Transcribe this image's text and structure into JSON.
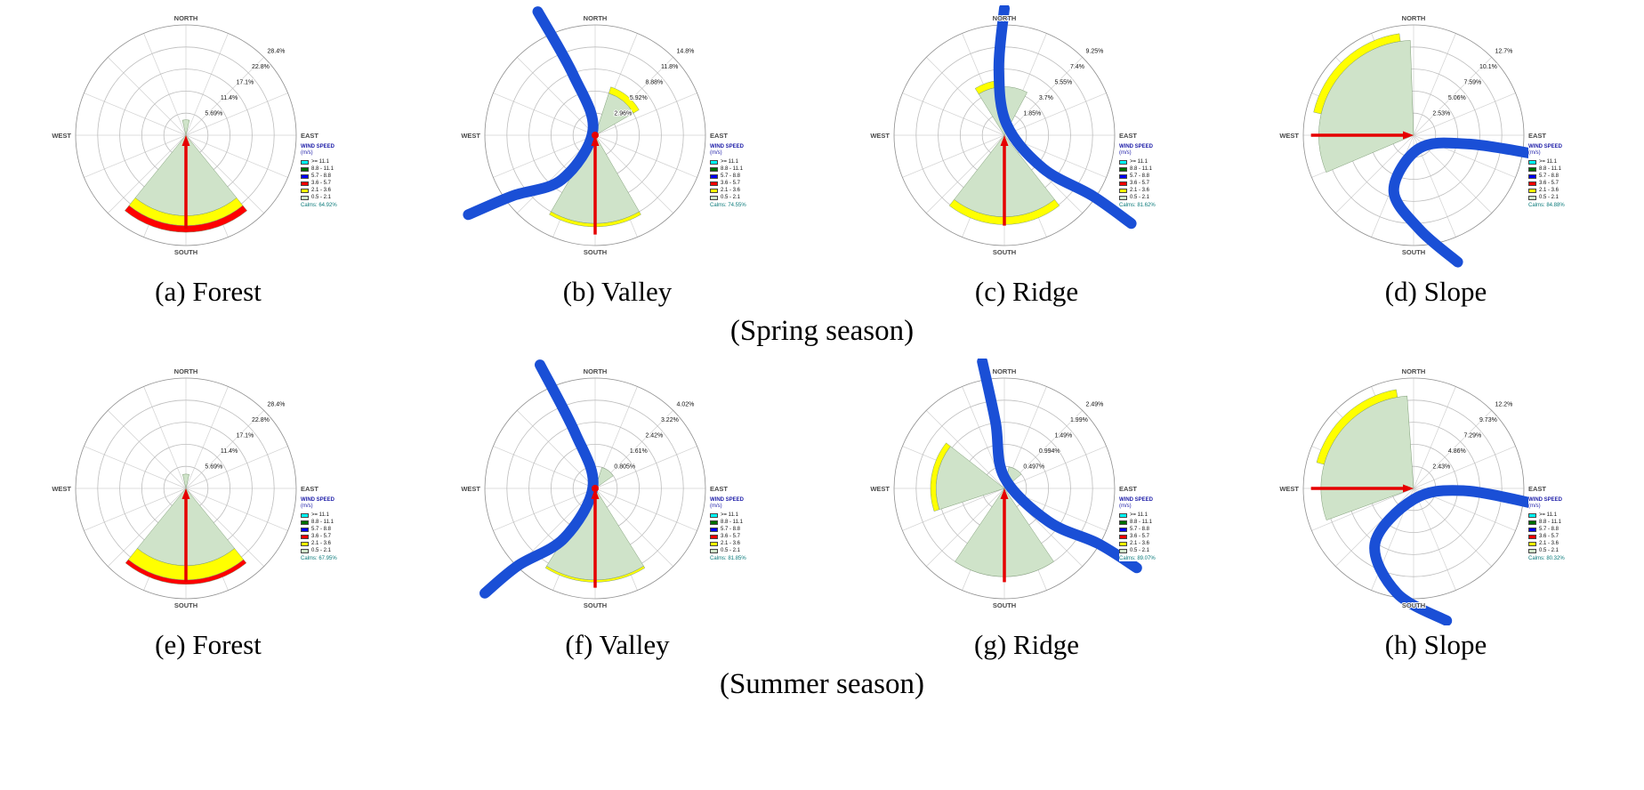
{
  "figure": {
    "background": "#ffffff",
    "seasons": [
      {
        "label": "(Spring season)"
      },
      {
        "label": "(Summer season)"
      }
    ]
  },
  "rose_common": {
    "direction_labels": {
      "north": "NORTH",
      "east": "EAST",
      "south": "SOUTH",
      "west": "WEST"
    },
    "colors": {
      "river": "#1a4fd6",
      "arrow": "#e60000",
      "petal_green": "#cfe3c9",
      "petal_yellow": "#ffff00",
      "petal_red": "#ff0000",
      "grid": "#bdbdbd"
    }
  },
  "legend_common": {
    "title": "WIND SPEED",
    "units": "(m/s)",
    "bins": [
      {
        "color": "#00ffff",
        "label": ">= 11.1"
      },
      {
        "color": "#006f00",
        "label": "8.8 - 11.1"
      },
      {
        "color": "#0000ff",
        "label": "5.7 - 8.8"
      },
      {
        "color": "#ff0000",
        "label": "3.6 - 5.7"
      },
      {
        "color": "#ffff00",
        "label": "2.1 - 3.6"
      },
      {
        "color": "#cfe3c9",
        "label": "0.5 - 2.1"
      }
    ]
  },
  "chart_data": [
    {
      "type": "wind-rose",
      "panel_id": "a",
      "caption": "(a) Forest",
      "season": "Spring",
      "row": 0,
      "ring_labels": [
        "28.4%",
        "22.8%",
        "17.1%",
        "11.4%",
        "5.69%"
      ],
      "ring_values_percent": [
        28.4,
        22.8,
        17.1,
        11.4,
        5.69
      ],
      "calms": "Calms: 64.92%",
      "dominant_sector": "S",
      "arrow_points_to": "north",
      "petals": [
        {
          "start_deg": 141,
          "end_deg": 219,
          "bands": [
            {
              "color": "#cfe3c9",
              "r0": 0,
              "r1": 0.73
            },
            {
              "color": "#ffff00",
              "r0": 0.73,
              "r1": 0.82
            },
            {
              "color": "#ff0000",
              "r0": 0.82,
              "r1": 0.88
            }
          ]
        },
        {
          "start_deg": -13,
          "end_deg": 13,
          "bands": [
            {
              "color": "#cfe3c9",
              "r0": 0,
              "r1": 0.14
            }
          ]
        }
      ],
      "arrow": {
        "x1": 0,
        "y1": 0.85,
        "x2": 0,
        "y2": 0
      },
      "center_dot": false,
      "river": null
    },
    {
      "type": "wind-rose",
      "panel_id": "b",
      "caption": "(b) Valley",
      "season": "Spring",
      "row": 0,
      "ring_labels": [
        "14.8%",
        "11.8%",
        "8.88%",
        "5.92%",
        "2.96%"
      ],
      "ring_values_percent": [
        14.8,
        11.8,
        8.88,
        5.92,
        2.96
      ],
      "calms": "Calms: 74.55%",
      "dominant_sector": "S",
      "arrow_points_to": "north",
      "petals": [
        {
          "start_deg": 150,
          "end_deg": 210,
          "bands": [
            {
              "color": "#cfe3c9",
              "r0": 0,
              "r1": 0.8
            },
            {
              "color": "#ffff00",
              "r0": 0.8,
              "r1": 0.83
            }
          ]
        },
        {
          "start_deg": 18,
          "end_deg": 60,
          "bands": [
            {
              "color": "#cfe3c9",
              "r0": 0,
              "r1": 0.4
            },
            {
              "color": "#ffff00",
              "r0": 0.4,
              "r1": 0.46
            }
          ]
        }
      ],
      "arrow": {
        "x1": 0,
        "y1": 0.9,
        "x2": 0,
        "y2": 0
      },
      "center_dot": true,
      "river": [
        [
          -0.52,
          -1.12
        ],
        [
          -0.2,
          -0.55
        ],
        [
          -0.02,
          -0.05
        ],
        [
          -0.3,
          0.4
        ],
        [
          -0.75,
          0.55
        ],
        [
          -1.15,
          0.72
        ]
      ]
    },
    {
      "type": "wind-rose",
      "panel_id": "c",
      "caption": "(c) Ridge",
      "season": "Spring",
      "row": 0,
      "ring_labels": [
        "9.25%",
        "7.4%",
        "5.55%",
        "3.7%",
        "1.85%"
      ],
      "ring_values_percent": [
        9.25,
        7.4,
        5.55,
        3.7,
        1.85
      ],
      "calms": "Calms: 81.62%",
      "dominant_sector": "S",
      "arrow_points_to": "north",
      "petals": [
        {
          "start_deg": 142,
          "end_deg": 218,
          "bands": [
            {
              "color": "#cfe3c9",
              "r0": 0,
              "r1": 0.74
            },
            {
              "color": "#ffff00",
              "r0": 0.74,
              "r1": 0.81
            }
          ]
        },
        {
          "start_deg": -32,
          "end_deg": 28,
          "bands": [
            {
              "color": "#cfe3c9",
              "r0": 0,
              "r1": 0.44
            }
          ]
        },
        {
          "start_deg": -32,
          "end_deg": -5,
          "bands": [
            {
              "color": "#ffff00",
              "r0": 0.44,
              "r1": 0.5
            }
          ]
        }
      ],
      "arrow": {
        "x1": 0,
        "y1": 0.82,
        "x2": 0,
        "y2": 0
      },
      "center_dot": false,
      "river": [
        [
          0.0,
          -1.15
        ],
        [
          -0.05,
          -0.6
        ],
        [
          0.02,
          -0.1
        ],
        [
          0.35,
          0.3
        ],
        [
          0.8,
          0.55
        ],
        [
          1.15,
          0.8
        ]
      ]
    },
    {
      "type": "wind-rose",
      "panel_id": "d",
      "caption": "(d) Slope",
      "season": "Spring",
      "row": 0,
      "ring_labels": [
        "12.7%",
        "10.1%",
        "7.59%",
        "5.06%",
        "2.53%"
      ],
      "ring_values_percent": [
        12.7,
        10.1,
        7.59,
        5.06,
        2.53
      ],
      "calms": "Calms: 84.88%",
      "dominant_sector": "W-NW",
      "arrow_points_to": "east",
      "petals": [
        {
          "start_deg": 247,
          "end_deg": 358,
          "bands": [
            {
              "color": "#cfe3c9",
              "r0": 0,
              "r1": 0.86
            }
          ]
        },
        {
          "start_deg": 283,
          "end_deg": 352,
          "bands": [
            {
              "color": "#ffff00",
              "r0": 0.86,
              "r1": 0.93
            }
          ]
        }
      ],
      "arrow": {
        "x1": -0.93,
        "y1": 0,
        "x2": 0,
        "y2": 0
      },
      "center_dot": false,
      "river": [
        [
          1.15,
          0.18
        ],
        [
          0.5,
          0.08
        ],
        [
          0.05,
          0.12
        ],
        [
          -0.18,
          0.5
        ],
        [
          0.05,
          0.85
        ],
        [
          0.4,
          1.15
        ]
      ]
    },
    {
      "type": "wind-rose",
      "panel_id": "e",
      "caption": "(e) Forest",
      "season": "Summer",
      "row": 1,
      "ring_labels": [
        "28.4%",
        "22.8%",
        "17.1%",
        "11.4%",
        "5.69%"
      ],
      "ring_values_percent": [
        28.4,
        22.8,
        17.1,
        11.4,
        5.69
      ],
      "calms": "Calms: 67.95%",
      "dominant_sector": "S",
      "arrow_points_to": "north",
      "petals": [
        {
          "start_deg": 141,
          "end_deg": 219,
          "bands": [
            {
              "color": "#cfe3c9",
              "r0": 0,
              "r1": 0.7
            },
            {
              "color": "#ffff00",
              "r0": 0.7,
              "r1": 0.83
            },
            {
              "color": "#ff0000",
              "r0": 0.83,
              "r1": 0.87
            }
          ]
        },
        {
          "start_deg": -13,
          "end_deg": 13,
          "bands": [
            {
              "color": "#cfe3c9",
              "r0": 0,
              "r1": 0.13
            }
          ]
        }
      ],
      "arrow": {
        "x1": 0,
        "y1": 0.85,
        "x2": 0,
        "y2": 0
      },
      "center_dot": false,
      "river": null
    },
    {
      "type": "wind-rose",
      "panel_id": "f",
      "caption": "(f) Valley",
      "season": "Summer",
      "row": 1,
      "ring_labels": [
        "4.02%",
        "3.22%",
        "2.42%",
        "1.61%",
        "0.805%"
      ],
      "ring_values_percent": [
        4.02,
        3.22,
        2.42,
        1.61,
        0.805
      ],
      "calms": "Calms: 81.85%",
      "dominant_sector": "S",
      "arrow_points_to": "north",
      "petals": [
        {
          "start_deg": 148,
          "end_deg": 212,
          "bands": [
            {
              "color": "#cfe3c9",
              "r0": 0,
              "r1": 0.83
            },
            {
              "color": "#ffff00",
              "r0": 0.83,
              "r1": 0.85
            }
          ]
        },
        {
          "start_deg": 18,
          "end_deg": 55,
          "bands": [
            {
              "color": "#cfe3c9",
              "r0": 0,
              "r1": 0.2
            }
          ]
        }
      ],
      "arrow": {
        "x1": 0,
        "y1": 0.9,
        "x2": 0,
        "y2": 0
      },
      "center_dot": true,
      "river": [
        [
          -0.5,
          -1.12
        ],
        [
          -0.18,
          -0.5
        ],
        [
          -0.02,
          -0.02
        ],
        [
          -0.28,
          0.45
        ],
        [
          -0.7,
          0.7
        ],
        [
          -1.0,
          0.95
        ]
      ]
    },
    {
      "type": "wind-rose",
      "panel_id": "g",
      "caption": "(g) Ridge",
      "season": "Summer",
      "row": 1,
      "ring_labels": [
        "2.49%",
        "1.99%",
        "1.49%",
        "0.994%",
        "0.497%"
      ],
      "ring_values_percent": [
        2.49,
        1.99,
        1.49,
        0.994,
        0.497
      ],
      "calms": "Calms: 89.07%",
      "dominant_sector": "S",
      "arrow_points_to": "north",
      "petals": [
        {
          "start_deg": 252,
          "end_deg": 308,
          "bands": [
            {
              "color": "#cfe3c9",
              "r0": 0,
              "r1": 0.62
            },
            {
              "color": "#ffff00",
              "r0": 0.62,
              "r1": 0.67
            }
          ]
        },
        {
          "start_deg": 146,
          "end_deg": 214,
          "bands": [
            {
              "color": "#cfe3c9",
              "r0": 0,
              "r1": 0.8
            }
          ]
        },
        {
          "start_deg": 12,
          "end_deg": 50,
          "bands": [
            {
              "color": "#cfe3c9",
              "r0": 0,
              "r1": 0.2
            }
          ]
        }
      ],
      "arrow": {
        "x1": 0,
        "y1": 0.85,
        "x2": 0,
        "y2": 0
      },
      "center_dot": false,
      "river": [
        [
          -0.2,
          -1.15
        ],
        [
          -0.08,
          -0.6
        ],
        [
          0.0,
          -0.1
        ],
        [
          0.4,
          0.3
        ],
        [
          0.85,
          0.5
        ],
        [
          1.2,
          0.72
        ]
      ]
    },
    {
      "type": "wind-rose",
      "panel_id": "h",
      "caption": "(h) Slope",
      "season": "Summer",
      "row": 1,
      "ring_labels": [
        "12.2%",
        "9.73%",
        "7.29%",
        "4.86%",
        "2.43%"
      ],
      "ring_values_percent": [
        12.2,
        9.73,
        7.29,
        4.86,
        2.43
      ],
      "calms": "Calms: 80.32%",
      "dominant_sector": "W-NW",
      "arrow_points_to": "east",
      "petals": [
        {
          "start_deg": 250,
          "end_deg": 356,
          "bands": [
            {
              "color": "#cfe3c9",
              "r0": 0,
              "r1": 0.84
            }
          ]
        },
        {
          "start_deg": 285,
          "end_deg": 350,
          "bands": [
            {
              "color": "#ffff00",
              "r0": 0.84,
              "r1": 0.91
            }
          ]
        }
      ],
      "arrow": {
        "x1": -0.93,
        "y1": 0,
        "x2": 0,
        "y2": 0
      },
      "center_dot": false,
      "river": [
        [
          1.15,
          0.15
        ],
        [
          0.45,
          0.02
        ],
        [
          0.0,
          0.1
        ],
        [
          -0.35,
          0.5
        ],
        [
          -0.15,
          0.95
        ],
        [
          0.3,
          1.2
        ]
      ]
    }
  ]
}
